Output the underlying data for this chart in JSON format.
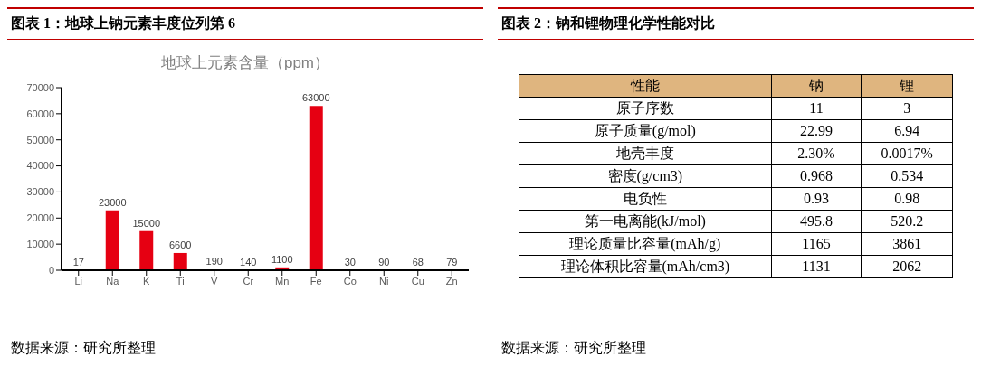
{
  "chart_data": [
    {
      "type": "bar",
      "title": "图表 1：地球上钠元素丰度位列第 6",
      "subtitle": "地球上元素含量（ppm）",
      "categories": [
        "Li",
        "Na",
        "K",
        "Ti",
        "V",
        "Cr",
        "Mn",
        "Fe",
        "Co",
        "Ni",
        "Cu",
        "Zn"
      ],
      "values": [
        17,
        23000,
        15000,
        6600,
        190,
        140,
        1100,
        63000,
        30,
        90,
        68,
        79
      ],
      "color": "#e60012",
      "ylim": [
        0,
        70000
      ],
      "yticks": [
        0,
        10000,
        20000,
        30000,
        40000,
        50000,
        60000,
        70000
      ],
      "grid": false,
      "legend": false,
      "data_labels": true,
      "annotations": [
        "数据来源：研究所整理"
      ]
    },
    {
      "type": "other",
      "title": "图表 2：钠和锂物理化学性能对比",
      "categories": [
        "性能",
        "钠",
        "锂"
      ],
      "y_categories": [
        "原子序数",
        "原子质量(g/mol)",
        "地壳丰度",
        "密度(g/cm3)",
        "电负性",
        "第一电离能(kJ/mol)",
        "理论质量比容量(mAh/g)",
        "理论体积比容量(mAh/cm3)"
      ],
      "cell_labels": [
        [
          "11",
          "3"
        ],
        [
          "22.99",
          "6.94"
        ],
        [
          "2.30%",
          "0.0017%"
        ],
        [
          "0.968",
          "0.534"
        ],
        [
          "0.93",
          "0.98"
        ],
        [
          "495.8",
          "520.2"
        ],
        [
          "1165",
          "3861"
        ],
        [
          "1131",
          "2062"
        ]
      ],
      "color": "#dfb57f",
      "annotations": [
        "数据来源：研究所整理"
      ]
    }
  ]
}
